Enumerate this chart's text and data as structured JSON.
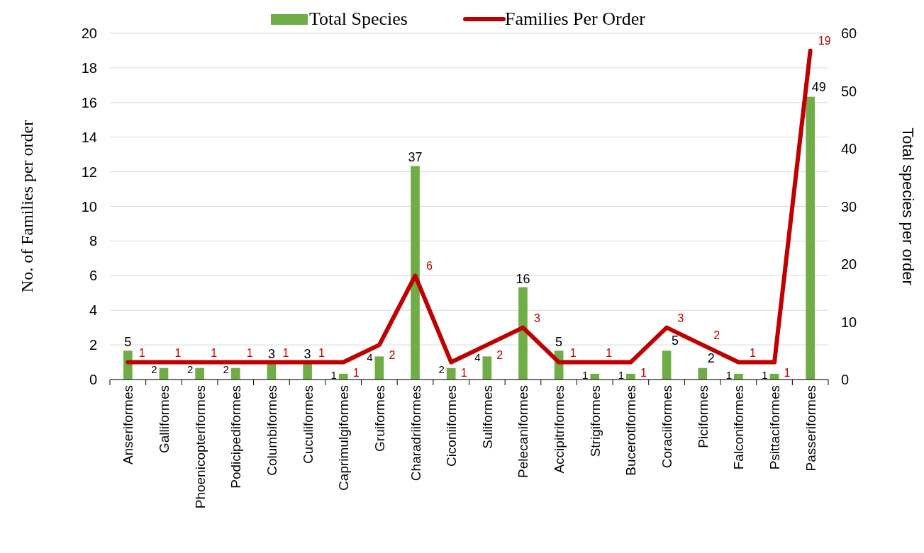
{
  "chart_data": {
    "type": "bar",
    "categories": [
      "Anseriformes",
      "Galliformes",
      "Phoenicopteriformes",
      "Podicipediformes",
      "Columbiformes",
      "Cuculiformes",
      "Caprimulgiformes",
      "Gruiformes",
      "Charadriiformes",
      "Ciconiiformes",
      "Suliformes",
      "Pelecaniformes",
      "Accipitriformes",
      "Strigiformes",
      "Bucerotiformes",
      "Coraciiformes",
      "Piciformes",
      "Falconiformes",
      "Psittaciformes",
      "Passeriformes"
    ],
    "series": [
      {
        "name": "Total Species",
        "axis": "y2",
        "color": "#70ad47",
        "values": [
          5,
          2,
          2,
          2,
          3,
          3,
          1,
          4,
          37,
          2,
          4,
          16,
          5,
          1,
          1,
          5,
          2,
          1,
          1,
          49
        ]
      },
      {
        "name": "Families Per Order",
        "type": "line",
        "axis": "y",
        "color": "#c00000",
        "values": [
          1,
          1,
          1,
          1,
          1,
          1,
          1,
          2,
          6,
          1,
          2,
          3,
          1,
          1,
          1,
          3,
          2,
          1,
          1,
          19
        ]
      }
    ],
    "ylabel": "No. of Families per order",
    "y2label": "Total species per order",
    "ylim": [
      0,
      20
    ],
    "yticks": [
      0,
      2,
      4,
      6,
      8,
      10,
      12,
      14,
      16,
      18,
      20
    ],
    "y2lim": [
      0,
      60
    ],
    "y2ticks": [
      0,
      10,
      20,
      30,
      40,
      50,
      60
    ],
    "grid": "y",
    "legend": "top",
    "data_labels": true,
    "marker": "none"
  }
}
